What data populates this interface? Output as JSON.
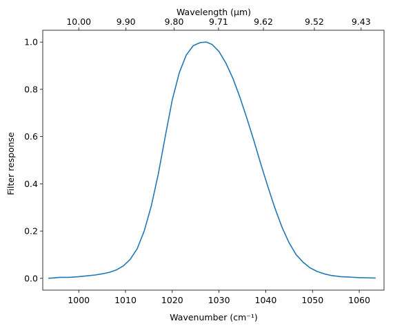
{
  "chart_data": {
    "type": "line",
    "xlabel": "Wavenumber (cm⁻¹)",
    "ylabel": "Filter response",
    "top_xlabel": "Wavelength (μm)",
    "xlim": [
      992.3,
      1065.3
    ],
    "ylim": [
      -0.05,
      1.05
    ],
    "grid": false,
    "x_ticks": [
      1000,
      1010,
      1020,
      1030,
      1040,
      1050,
      1060
    ],
    "y_ticks": [
      0.0,
      0.2,
      0.4,
      0.6,
      0.8,
      1.0
    ],
    "top_ticks": [
      {
        "at": 1000.0,
        "label": "10.00"
      },
      {
        "at": 1010.1,
        "label": "9.90"
      },
      {
        "at": 1020.4,
        "label": "9.80"
      },
      {
        "at": 1029.9,
        "label": "9.71"
      },
      {
        "at": 1039.5,
        "label": "9.62"
      },
      {
        "at": 1050.4,
        "label": "9.52"
      },
      {
        "at": 1060.4,
        "label": "9.43"
      }
    ],
    "series": [
      {
        "color": "#1f77b4",
        "x": [
          993.5,
          996,
          998,
          1000,
          1002,
          1003.5,
          1005,
          1006.5,
          1008,
          1009.5,
          1011,
          1012.5,
          1014,
          1015.5,
          1017,
          1018.5,
          1020,
          1021.5,
          1023,
          1024.5,
          1026,
          1027.3,
          1028.5,
          1030,
          1031.5,
          1033,
          1034.5,
          1036,
          1037.5,
          1039,
          1040.5,
          1042,
          1043.5,
          1045,
          1046.5,
          1048,
          1049.5,
          1051,
          1052.5,
          1054,
          1056,
          1058,
          1060,
          1062,
          1063.5
        ],
        "y": [
          0.0,
          0.004,
          0.004,
          0.007,
          0.011,
          0.014,
          0.019,
          0.025,
          0.035,
          0.052,
          0.08,
          0.125,
          0.2,
          0.305,
          0.44,
          0.6,
          0.755,
          0.87,
          0.945,
          0.985,
          0.998,
          1.0,
          0.99,
          0.96,
          0.91,
          0.845,
          0.765,
          0.675,
          0.58,
          0.48,
          0.385,
          0.295,
          0.215,
          0.15,
          0.1,
          0.068,
          0.044,
          0.029,
          0.019,
          0.012,
          0.007,
          0.005,
          0.003,
          0.002,
          0.001
        ]
      }
    ]
  }
}
